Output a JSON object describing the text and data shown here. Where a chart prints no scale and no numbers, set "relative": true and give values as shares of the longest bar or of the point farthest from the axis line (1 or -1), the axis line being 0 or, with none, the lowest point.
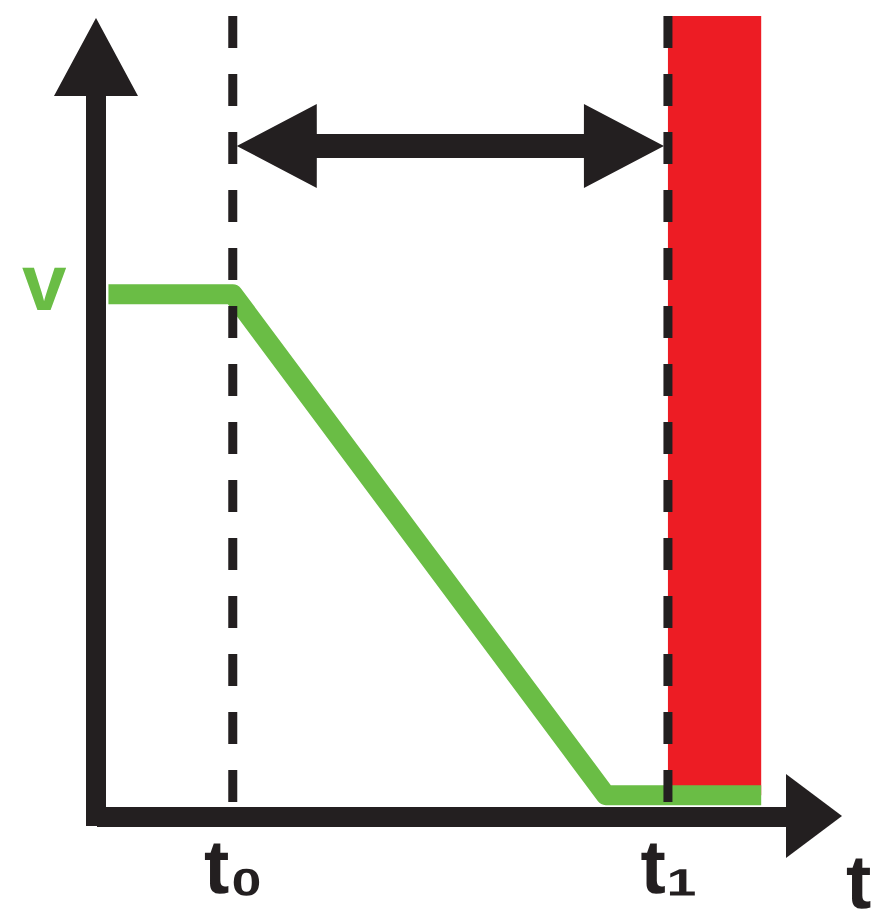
{
  "chart_data": {
    "type": "line",
    "relative": true,
    "categories": [
      null,
      null,
      null,
      null,
      "t₀",
      null,
      null,
      null,
      null,
      null,
      null,
      null,
      null,
      null,
      null,
      null,
      null,
      null,
      "t₁",
      null,
      null,
      null
    ],
    "series": [
      {
        "name": "v",
        "color": "#6abd45",
        "values": [
          1,
          1,
          1,
          1,
          1,
          0.92,
          0.84,
          0.76,
          0.68,
          0.6,
          0.52,
          0.44,
          0.36,
          0.28,
          0.2,
          0.12,
          0.04,
          0.04,
          0.04,
          0.04,
          0.04,
          0.04
        ]
      }
    ],
    "ref_lines": [
      {
        "axis": "x",
        "value": "t₀",
        "color": "#231f20",
        "line_style": "dashed"
      },
      {
        "axis": "x",
        "value": "t₁",
        "color": "#231f20",
        "line_style": "dashed"
      }
    ],
    "annotations": [
      "t"
    ]
  }
}
